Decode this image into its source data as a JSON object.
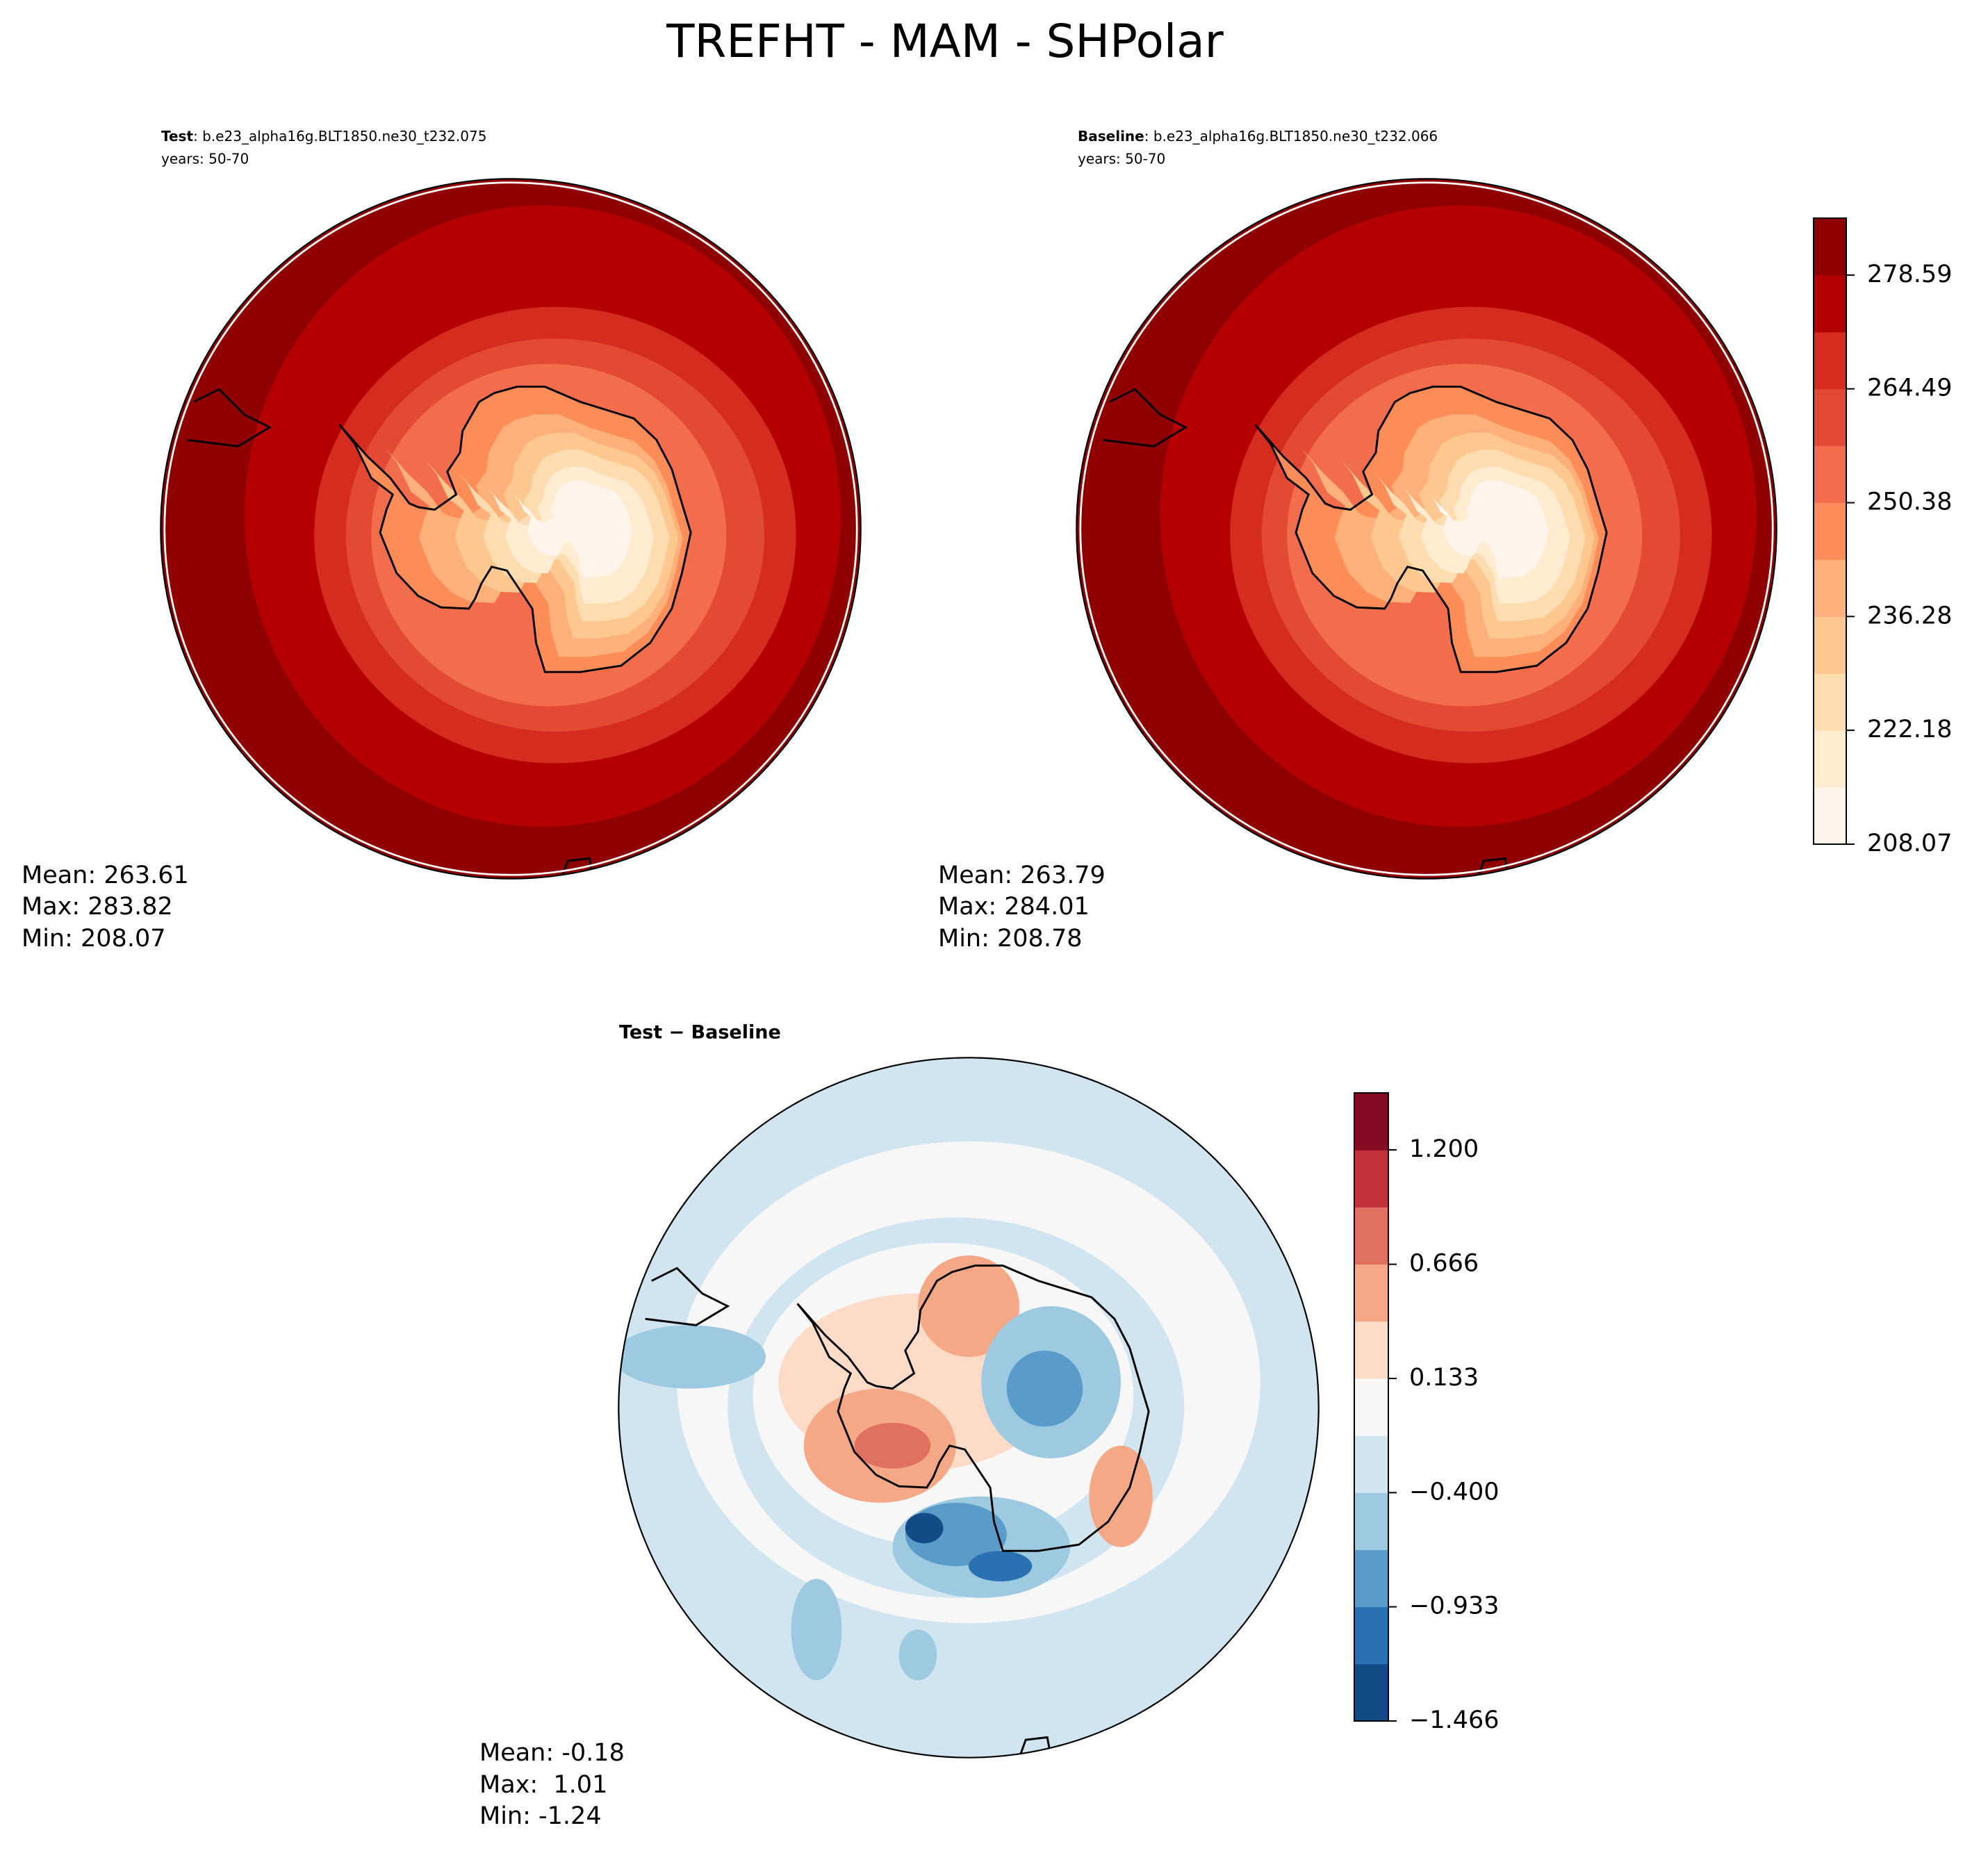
{
  "title": "TREFHT - MAM - SHPolar",
  "panels": [
    {
      "label": "Test",
      "case": ": b.e23_alpha16g.BLT1850.ne30_t232.075",
      "years": "years: 50-70",
      "stats": [
        "Mean: 263.61",
        "Max: 283.82",
        "Min: 208.07"
      ]
    },
    {
      "label": "Baseline",
      "case": ": b.e23_alpha16g.BLT1850.ne30_t232.066",
      "years": "years: 50-70",
      "stats": [
        "Mean: 263.79",
        "Max: 284.01",
        "Min: 208.78"
      ]
    },
    {
      "label": "Test − Baseline",
      "stats": [
        "Mean: -0.18",
        "Max:  1.01",
        "Min: -1.24"
      ]
    }
  ],
  "colorbars": [
    {
      "lim": [
        208.07,
        285.64
      ],
      "ticks": [
        208.07,
        222.18,
        236.28,
        250.38,
        264.49,
        278.59
      ],
      "colors": [
        "#fff5eb",
        "#feebd0",
        "#fddcb0",
        "#fdc88f",
        "#fdb07a",
        "#fc8d59",
        "#f26d4b",
        "#e34a33",
        "#d42d20",
        "#b40000",
        "#8f0000"
      ]
    },
    {
      "lim": [
        -1.466,
        1.466
      ],
      "ticks": [
        {
          "value": -1.466,
          "label": "−1.466"
        },
        {
          "value": -0.933,
          "label": "−0.933"
        },
        {
          "value": -0.4,
          "label": "−0.400"
        },
        0.133,
        0.666,
        {
          "value": 1.2,
          "label": "1.200"
        }
      ],
      "colors": [
        "#134b87",
        "#2a71b2",
        "#5a9cc9",
        "#9ecae1",
        "#d1e5f0",
        "#f7f7f7",
        "#fddbc7",
        "#f5a886",
        "#e07060",
        "#c0313a",
        "#820a25"
      ]
    }
  ]
}
